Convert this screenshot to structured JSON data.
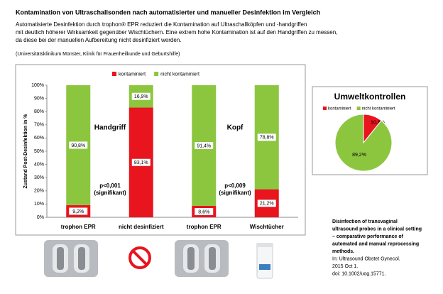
{
  "header": {
    "title": "Kontamination von Ultraschallsonden nach automatisierter und manueller Desinfektion im Vergleich",
    "paragraph": [
      "Automatisierte Desinfektion durch trophon® EPR reduziert die Kontamination auf Ultraschallköpfen und -handgriffen",
      "mit deutlich höherer Wirksamkeit gegenüber Wischtüchern. Eine extrem hohe Kontamination ist auf den Handgriffen zu messen,",
      "da diese bei der manuellen Aufbereitung nicht desinfiziert werden."
    ],
    "source": "(Universitätsklinikum Münster, Klinik für Frauenheilkunde und Geburtshilfe)"
  },
  "reference": [
    "Disinfection of transvaginal",
    "ultrasound probes in a clinical setting",
    "– comparative performance of",
    "automated and manual reprocessing",
    "methods.",
    "In: Ultrasound Obstet Gynecol.",
    "2015 Oct 1.",
    "doi: 10.1002/uog.15771."
  ],
  "chart_data": [
    {
      "type": "stacked_bar",
      "ylabel": "Zustand Post-Desinfektion in %",
      "categories": [
        "trophon EPR",
        "nicht desinfiziert",
        "trophon EPR",
        "Wischtücher"
      ],
      "series": [
        {
          "name": "kontaminiert",
          "color": "#e8141e",
          "values": [
            9.2,
            83.1,
            8.6,
            21.2
          ],
          "value_labels": [
            "9,2%",
            "83,1%",
            "8,6%",
            "21,2%"
          ]
        },
        {
          "name": "nicht kontaminiert",
          "color": "#8cc63f",
          "values": [
            90.8,
            16.9,
            91.4,
            78.8
          ],
          "value_labels": [
            "90,8%",
            "16,9%",
            "91,4%",
            "78,8%"
          ]
        }
      ],
      "ylim": [
        0,
        100
      ],
      "yticks": [
        {
          "value": 0,
          "label": "0%"
        },
        {
          "value": 10,
          "label": "10%"
        },
        {
          "value": 20,
          "label": "20%"
        },
        {
          "value": 30,
          "label": "30%"
        },
        {
          "value": 40,
          "label": "40%"
        },
        {
          "value": 50,
          "label": "50%"
        },
        {
          "value": 60,
          "label": "60%"
        },
        {
          "value": 70,
          "label": "70%"
        },
        {
          "value": 80,
          "label": "80%"
        },
        {
          "value": 90,
          "label": "90%"
        },
        {
          "value": 100,
          "label": "100%"
        }
      ],
      "annotations": [
        "Handgriff",
        "Kopf",
        "p<0,001",
        "(signifikant)",
        "p<0,009",
        "(signifikant)"
      ],
      "legend": "top"
    },
    {
      "type": "pie",
      "title": "Umweltkontrollen",
      "categories": [
        "kontaminiert",
        "nicht kontaminiert"
      ],
      "colors": [
        "#e8141e",
        "#8cc63f"
      ],
      "values": [
        10.8,
        89.2
      ],
      "value_labels": [
        "10,8%",
        "89,2%"
      ],
      "legend": "top"
    }
  ]
}
